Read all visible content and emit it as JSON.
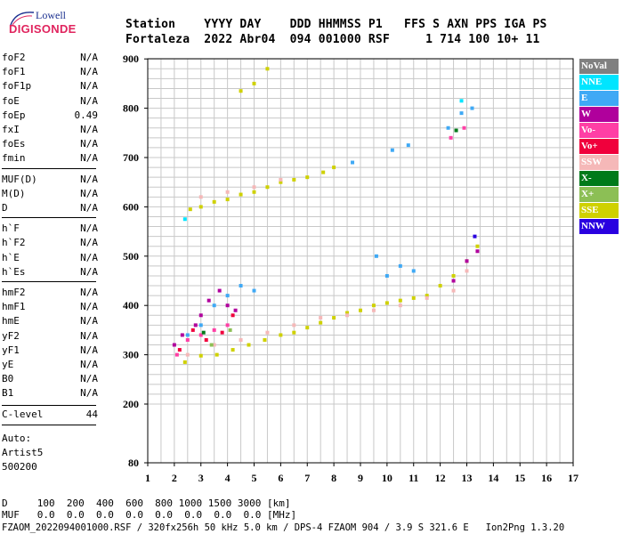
{
  "logo": {
    "brand": "Lowell",
    "name": "DIGISONDE"
  },
  "header": {
    "line1": "Station    YYYY DAY    DDD HHMMSS P1   FFS S AXN PPS IGA PS",
    "line2": "Fortaleza  2022 Abr04  094 001000 RSF     1 714 100 10+ 11"
  },
  "params": {
    "group1": [
      {
        "name": "foF2",
        "value": "N/A"
      },
      {
        "name": "foF1",
        "value": "N/A"
      },
      {
        "name": "foF1p",
        "value": "N/A"
      },
      {
        "name": "foE",
        "value": "N/A"
      },
      {
        "name": "foEp",
        "value": "0.49"
      },
      {
        "name": "fxI",
        "value": "N/A"
      },
      {
        "name": "foEs",
        "value": "N/A"
      },
      {
        "name": "fmin",
        "value": "N/A"
      }
    ],
    "group2": [
      {
        "name": "MUF(D)",
        "value": "N/A"
      },
      {
        "name": "M(D)",
        "value": "N/A"
      },
      {
        "name": "D",
        "value": "N/A"
      }
    ],
    "group3": [
      {
        "name": "h`F",
        "value": "N/A"
      },
      {
        "name": "h`F2",
        "value": "N/A"
      },
      {
        "name": "h`E",
        "value": "N/A"
      },
      {
        "name": "h`Es",
        "value": "N/A"
      }
    ],
    "group4": [
      {
        "name": "hmF2",
        "value": "N/A"
      },
      {
        "name": "hmF1",
        "value": "N/A"
      },
      {
        "name": "hmE",
        "value": "N/A"
      },
      {
        "name": "yF2",
        "value": "N/A"
      },
      {
        "name": "yF1",
        "value": "N/A"
      },
      {
        "name": "yE",
        "value": "N/A"
      },
      {
        "name": "B0",
        "value": "N/A"
      },
      {
        "name": "B1",
        "value": "N/A"
      }
    ],
    "clevel": {
      "name": "C-level",
      "value": "44"
    }
  },
  "auto": {
    "line1": "Auto:",
    "line2": "Artist5",
    "line3": "500200"
  },
  "legend": [
    {
      "label": "NoVal",
      "color": "#808080"
    },
    {
      "label": "NNE",
      "color": "#00e5ff"
    },
    {
      "label": "E",
      "color": "#3fa9f5"
    },
    {
      "label": "W",
      "color": "#b0009c"
    },
    {
      "label": "Vo-",
      "color": "#ff3fa5"
    },
    {
      "label": "Vo+",
      "color": "#f0003c"
    },
    {
      "label": "SSW",
      "color": "#f5b8b8"
    },
    {
      "label": "X-",
      "color": "#007a1a"
    },
    {
      "label": "X+",
      "color": "#8cbf55"
    },
    {
      "label": "SSE",
      "color": "#cfd100"
    },
    {
      "label": "NNW",
      "color": "#2a00e0"
    }
  ],
  "bottom": {
    "dist_line": "D     100  200  400  600  800 1000 1500 3000 [km]",
    "muf_line": "MUF   0.0  0.0  0.0  0.0  0.0  0.0  0.0  0.0 [MHz]",
    "file_line": "FZAOM_2022094001000.RSF / 320fx256h 50 kHz 5.0 km / DPS-4 FZAOM 904 / 3.9 S 321.6 E   Ion2Png 1.3.20"
  },
  "chart_data": {
    "type": "scatter",
    "x_ticks": [
      1,
      2,
      3,
      4,
      5,
      6,
      7,
      8,
      9,
      10,
      11,
      12,
      13,
      14,
      15,
      16,
      17
    ],
    "y_ticks": [
      80,
      200,
      300,
      400,
      500,
      600,
      700,
      800,
      900
    ],
    "xlim": [
      1,
      17
    ],
    "ylim": [
      80,
      900
    ],
    "grid": true,
    "legend_placement": "right",
    "series": [
      {
        "name": "SSE",
        "color": "#cfd100",
        "points": [
          [
            2.4,
            285
          ],
          [
            3,
            298
          ],
          [
            3.6,
            300
          ],
          [
            4.2,
            310
          ],
          [
            4.8,
            320
          ],
          [
            5.4,
            330
          ],
          [
            6,
            340
          ],
          [
            6.5,
            345
          ],
          [
            7,
            355
          ],
          [
            7.5,
            365
          ],
          [
            8,
            375
          ],
          [
            8.5,
            385
          ],
          [
            9,
            390
          ],
          [
            9.5,
            400
          ],
          [
            10,
            405
          ],
          [
            10.5,
            410
          ],
          [
            11,
            415
          ],
          [
            11.5,
            420
          ],
          [
            12,
            440
          ],
          [
            12.5,
            460
          ],
          [
            13,
            490
          ],
          [
            13.4,
            520
          ],
          [
            2.6,
            595
          ],
          [
            3,
            600
          ],
          [
            3.5,
            610
          ],
          [
            4,
            615
          ],
          [
            4.5,
            625
          ],
          [
            5,
            630
          ],
          [
            5.5,
            640
          ],
          [
            6,
            650
          ],
          [
            6.5,
            655
          ],
          [
            7,
            660
          ],
          [
            7.6,
            670
          ],
          [
            8,
            680
          ],
          [
            4.5,
            835
          ],
          [
            5,
            850
          ],
          [
            5.5,
            880
          ]
        ]
      },
      {
        "name": "SSW",
        "color": "#f5b8b8",
        "points": [
          [
            2.5,
            300
          ],
          [
            3.5,
            320
          ],
          [
            4.5,
            330
          ],
          [
            5.5,
            345
          ],
          [
            6.5,
            360
          ],
          [
            7.5,
            375
          ],
          [
            8.5,
            380
          ],
          [
            9.5,
            390
          ],
          [
            10.5,
            400
          ],
          [
            11.5,
            415
          ],
          [
            12.5,
            430
          ],
          [
            13,
            470
          ],
          [
            3,
            620
          ],
          [
            4,
            630
          ],
          [
            5,
            640
          ],
          [
            6,
            655
          ]
        ]
      },
      {
        "name": "E",
        "color": "#3fa9f5",
        "points": [
          [
            2.5,
            340
          ],
          [
            3,
            360
          ],
          [
            3.5,
            400
          ],
          [
            4,
            420
          ],
          [
            4.5,
            440
          ],
          [
            5,
            430
          ],
          [
            9.6,
            500
          ],
          [
            10,
            460
          ],
          [
            10.5,
            480
          ],
          [
            11,
            470
          ],
          [
            8.7,
            690
          ],
          [
            10.2,
            715
          ],
          [
            10.8,
            725
          ],
          [
            12.3,
            760
          ],
          [
            12.8,
            790
          ],
          [
            13.2,
            800
          ]
        ]
      },
      {
        "name": "W",
        "color": "#b0009c",
        "points": [
          [
            2,
            320
          ],
          [
            2.3,
            340
          ],
          [
            2.8,
            360
          ],
          [
            3,
            380
          ],
          [
            3.3,
            410
          ],
          [
            3.7,
            430
          ],
          [
            4,
            400
          ],
          [
            4.3,
            390
          ],
          [
            12.5,
            450
          ],
          [
            13,
            490
          ],
          [
            13.4,
            510
          ]
        ]
      },
      {
        "name": "Vo-",
        "color": "#ff3fa5",
        "points": [
          [
            2.1,
            300
          ],
          [
            2.5,
            330
          ],
          [
            3,
            340
          ],
          [
            3.5,
            350
          ],
          [
            4,
            360
          ],
          [
            12.4,
            740
          ],
          [
            12.9,
            760
          ]
        ]
      },
      {
        "name": "Vo+",
        "color": "#f0003c",
        "points": [
          [
            2.2,
            310
          ],
          [
            2.7,
            350
          ],
          [
            3.2,
            330
          ],
          [
            3.8,
            345
          ],
          [
            4.2,
            380
          ]
        ]
      },
      {
        "name": "X-",
        "color": "#007a1a",
        "points": [
          [
            3.1,
            345
          ],
          [
            12.6,
            755
          ]
        ]
      },
      {
        "name": "X+",
        "color": "#8cbf55",
        "points": [
          [
            3.4,
            320
          ],
          [
            4.1,
            350
          ]
        ]
      },
      {
        "name": "NNE",
        "color": "#00e5ff",
        "points": [
          [
            2.4,
            575
          ],
          [
            12.8,
            815
          ]
        ]
      },
      {
        "name": "NNW",
        "color": "#2a00e0",
        "points": [
          [
            13.3,
            540
          ]
        ]
      }
    ]
  }
}
